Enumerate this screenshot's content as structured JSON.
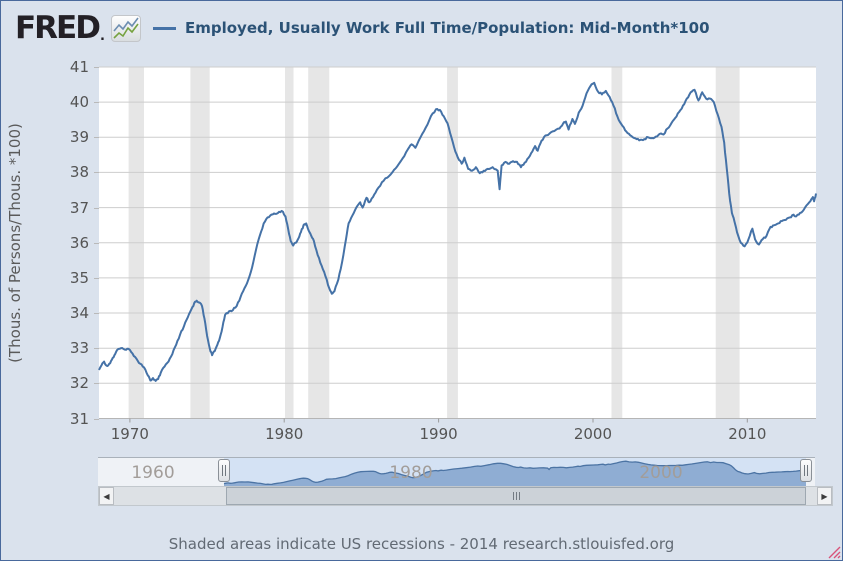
{
  "header": {
    "logo_text": "FRED",
    "logo_registered_mark": ".",
    "series_title": "Employed, Usually Work Full Time/Population: Mid-Month*100"
  },
  "footer": {
    "note": "Shaded areas indicate US recessions - 2014 research.stlouisfed.org"
  },
  "colors": {
    "accent_line": "#4572a7",
    "recession_band": "#e6e6e6",
    "background": "#dae2ed",
    "plot_background": "#ffffff",
    "gridline": "#cdcdcd",
    "minimap_area_fill": "#8fadd3",
    "minimap_area_line": "#4c74a4"
  },
  "minimap": {
    "year_labels": [
      "1960",
      "1980",
      "2000"
    ],
    "selected_range_years": [
      1968.0,
      2014.45
    ]
  },
  "scrollbar": {
    "left_arrow": "◀",
    "right_arrow": "▶",
    "thumb_grip": "|||"
  },
  "chart_data": {
    "type": "line",
    "title": "Employed, Usually Work Full Time/Population: Mid-Month*100",
    "xlabel": "",
    "ylabel": "(Thous. of Persons/Thous. *100)",
    "ylim": [
      31,
      41
    ],
    "ytick_step": 1,
    "xlim": [
      1968.0,
      2014.45
    ],
    "xticks": [
      1970,
      1980,
      1990,
      2000,
      2010
    ],
    "grid": "horizontal",
    "legend_position": "top",
    "recession_bands": [
      [
        1969.92,
        1970.92
      ],
      [
        1973.92,
        1975.17
      ],
      [
        1980.05,
        1980.6
      ],
      [
        1981.55,
        1982.92
      ],
      [
        1990.55,
        1991.25
      ],
      [
        2001.2,
        2001.9
      ],
      [
        2007.95,
        2009.5
      ]
    ],
    "series": [
      {
        "name": "Employed, Usually Work Full Time/Population: Mid-Month*100",
        "points": [
          [
            1968.0,
            32.38
          ],
          [
            1968.17,
            32.52
          ],
          [
            1968.33,
            32.62
          ],
          [
            1968.5,
            32.5
          ],
          [
            1968.67,
            32.56
          ],
          [
            1968.83,
            32.67
          ],
          [
            1969.0,
            32.8
          ],
          [
            1969.17,
            32.95
          ],
          [
            1969.42,
            33.0
          ],
          [
            1969.67,
            32.96
          ],
          [
            1969.92,
            32.98
          ],
          [
            1970.17,
            32.85
          ],
          [
            1970.42,
            32.7
          ],
          [
            1970.67,
            32.56
          ],
          [
            1970.92,
            32.45
          ],
          [
            1971.17,
            32.22
          ],
          [
            1971.33,
            32.08
          ],
          [
            1971.5,
            32.15
          ],
          [
            1971.67,
            32.07
          ],
          [
            1971.83,
            32.12
          ],
          [
            1972.0,
            32.3
          ],
          [
            1972.25,
            32.48
          ],
          [
            1972.5,
            32.62
          ],
          [
            1972.75,
            32.83
          ],
          [
            1973.0,
            33.1
          ],
          [
            1973.25,
            33.38
          ],
          [
            1973.5,
            33.62
          ],
          [
            1973.75,
            33.88
          ],
          [
            1974.0,
            34.12
          ],
          [
            1974.17,
            34.28
          ],
          [
            1974.33,
            34.35
          ],
          [
            1974.5,
            34.3
          ],
          [
            1974.67,
            34.2
          ],
          [
            1974.83,
            33.85
          ],
          [
            1975.0,
            33.35
          ],
          [
            1975.17,
            33.0
          ],
          [
            1975.33,
            32.8
          ],
          [
            1975.5,
            32.92
          ],
          [
            1975.67,
            33.1
          ],
          [
            1975.83,
            33.3
          ],
          [
            1976.0,
            33.6
          ],
          [
            1976.17,
            33.95
          ],
          [
            1976.42,
            34.05
          ],
          [
            1976.67,
            34.08
          ],
          [
            1976.92,
            34.2
          ],
          [
            1977.17,
            34.45
          ],
          [
            1977.42,
            34.7
          ],
          [
            1977.67,
            34.95
          ],
          [
            1977.92,
            35.3
          ],
          [
            1978.17,
            35.8
          ],
          [
            1978.42,
            36.2
          ],
          [
            1978.67,
            36.55
          ],
          [
            1978.92,
            36.72
          ],
          [
            1979.17,
            36.8
          ],
          [
            1979.42,
            36.82
          ],
          [
            1979.67,
            36.88
          ],
          [
            1979.92,
            36.88
          ],
          [
            1980.08,
            36.75
          ],
          [
            1980.25,
            36.4
          ],
          [
            1980.42,
            36.05
          ],
          [
            1980.58,
            35.92
          ],
          [
            1980.75,
            36.0
          ],
          [
            1980.92,
            36.12
          ],
          [
            1981.08,
            36.3
          ],
          [
            1981.25,
            36.5
          ],
          [
            1981.42,
            36.55
          ],
          [
            1981.58,
            36.35
          ],
          [
            1981.75,
            36.2
          ],
          [
            1981.92,
            36.05
          ],
          [
            1982.17,
            35.65
          ],
          [
            1982.42,
            35.35
          ],
          [
            1982.67,
            35.05
          ],
          [
            1982.92,
            34.7
          ],
          [
            1983.08,
            34.55
          ],
          [
            1983.25,
            34.62
          ],
          [
            1983.5,
            34.95
          ],
          [
            1983.75,
            35.45
          ],
          [
            1984.0,
            36.1
          ],
          [
            1984.17,
            36.55
          ],
          [
            1984.42,
            36.78
          ],
          [
            1984.67,
            37.0
          ],
          [
            1984.92,
            37.15
          ],
          [
            1985.08,
            37.0
          ],
          [
            1985.33,
            37.28
          ],
          [
            1985.5,
            37.15
          ],
          [
            1985.75,
            37.3
          ],
          [
            1986.0,
            37.5
          ],
          [
            1986.33,
            37.72
          ],
          [
            1986.67,
            37.85
          ],
          [
            1987.0,
            38.0
          ],
          [
            1987.33,
            38.18
          ],
          [
            1987.67,
            38.4
          ],
          [
            1988.0,
            38.65
          ],
          [
            1988.25,
            38.8
          ],
          [
            1988.5,
            38.7
          ],
          [
            1988.83,
            39.0
          ],
          [
            1989.17,
            39.28
          ],
          [
            1989.5,
            39.6
          ],
          [
            1989.83,
            39.8
          ],
          [
            1990.08,
            39.78
          ],
          [
            1990.33,
            39.6
          ],
          [
            1990.58,
            39.4
          ],
          [
            1990.83,
            39.0
          ],
          [
            1991.08,
            38.6
          ],
          [
            1991.33,
            38.35
          ],
          [
            1991.5,
            38.25
          ],
          [
            1991.67,
            38.42
          ],
          [
            1991.92,
            38.1
          ],
          [
            1992.17,
            38.05
          ],
          [
            1992.42,
            38.15
          ],
          [
            1992.67,
            37.98
          ],
          [
            1992.92,
            38.05
          ],
          [
            1993.17,
            38.1
          ],
          [
            1993.5,
            38.15
          ],
          [
            1993.83,
            38.05
          ],
          [
            1993.95,
            37.52
          ],
          [
            1994.08,
            38.2
          ],
          [
            1994.33,
            38.3
          ],
          [
            1994.58,
            38.25
          ],
          [
            1994.83,
            38.32
          ],
          [
            1995.08,
            38.3
          ],
          [
            1995.33,
            38.15
          ],
          [
            1995.58,
            38.28
          ],
          [
            1995.83,
            38.42
          ],
          [
            1996.08,
            38.6
          ],
          [
            1996.25,
            38.75
          ],
          [
            1996.42,
            38.62
          ],
          [
            1996.67,
            38.9
          ],
          [
            1996.92,
            39.05
          ],
          [
            1997.17,
            39.1
          ],
          [
            1997.5,
            39.18
          ],
          [
            1997.83,
            39.25
          ],
          [
            1998.08,
            39.4
          ],
          [
            1998.25,
            39.45
          ],
          [
            1998.42,
            39.22
          ],
          [
            1998.67,
            39.52
          ],
          [
            1998.83,
            39.38
          ],
          [
            1999.08,
            39.7
          ],
          [
            1999.33,
            39.9
          ],
          [
            1999.58,
            40.25
          ],
          [
            1999.83,
            40.45
          ],
          [
            2000.08,
            40.55
          ],
          [
            2000.33,
            40.3
          ],
          [
            2000.58,
            40.22
          ],
          [
            2000.83,
            40.32
          ],
          [
            2001.08,
            40.15
          ],
          [
            2001.33,
            39.9
          ],
          [
            2001.58,
            39.6
          ],
          [
            2001.83,
            39.38
          ],
          [
            2002.08,
            39.2
          ],
          [
            2002.33,
            39.1
          ],
          [
            2002.58,
            39.0
          ],
          [
            2002.83,
            38.95
          ],
          [
            2003.08,
            38.93
          ],
          [
            2003.33,
            38.95
          ],
          [
            2003.58,
            39.0
          ],
          [
            2003.83,
            38.98
          ],
          [
            2004.08,
            39.02
          ],
          [
            2004.33,
            39.1
          ],
          [
            2004.58,
            39.08
          ],
          [
            2004.83,
            39.25
          ],
          [
            2005.08,
            39.4
          ],
          [
            2005.33,
            39.55
          ],
          [
            2005.58,
            39.72
          ],
          [
            2005.83,
            39.9
          ],
          [
            2006.08,
            40.1
          ],
          [
            2006.33,
            40.28
          ],
          [
            2006.58,
            40.35
          ],
          [
            2006.83,
            40.05
          ],
          [
            2007.08,
            40.28
          ],
          [
            2007.33,
            40.1
          ],
          [
            2007.58,
            40.1
          ],
          [
            2007.83,
            40.0
          ],
          [
            2008.08,
            39.65
          ],
          [
            2008.33,
            39.3
          ],
          [
            2008.5,
            38.85
          ],
          [
            2008.67,
            38.1
          ],
          [
            2008.83,
            37.4
          ],
          [
            2009.0,
            36.85
          ],
          [
            2009.17,
            36.6
          ],
          [
            2009.33,
            36.3
          ],
          [
            2009.58,
            36.0
          ],
          [
            2009.83,
            35.9
          ],
          [
            2010.08,
            36.1
          ],
          [
            2010.33,
            36.4
          ],
          [
            2010.5,
            36.1
          ],
          [
            2010.75,
            35.95
          ],
          [
            2011.0,
            36.1
          ],
          [
            2011.25,
            36.2
          ],
          [
            2011.5,
            36.45
          ],
          [
            2011.75,
            36.5
          ],
          [
            2012.0,
            36.55
          ],
          [
            2012.25,
            36.62
          ],
          [
            2012.5,
            36.65
          ],
          [
            2012.75,
            36.72
          ],
          [
            2013.0,
            36.8
          ],
          [
            2013.17,
            36.75
          ],
          [
            2013.42,
            36.85
          ],
          [
            2013.67,
            36.95
          ],
          [
            2013.92,
            37.1
          ],
          [
            2014.08,
            37.18
          ],
          [
            2014.25,
            37.3
          ],
          [
            2014.33,
            37.18
          ],
          [
            2014.45,
            37.4
          ]
        ]
      }
    ]
  }
}
